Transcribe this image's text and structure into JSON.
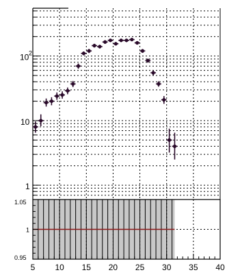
{
  "chart_data": [
    {
      "type": "scatter",
      "title": "",
      "xlabel": "",
      "ylabel": "",
      "scale": "log",
      "grid": true,
      "xlim": [
        5,
        40
      ],
      "ylim": [
        0.6,
        550
      ],
      "y_tick_labels": [
        {
          "value": 1,
          "label": "1"
        },
        {
          "value": 10,
          "label": "10"
        },
        {
          "value": 100,
          "label": "10",
          "exponent": "2"
        }
      ],
      "series": [
        {
          "color": "#2a0a2a",
          "x": [
            5.5,
            6.5,
            7.5,
            8.5,
            9.5,
            10.5,
            11.5,
            12.5,
            13.5,
            14.5,
            15.5,
            16.5,
            17.5,
            18.5,
            19.5,
            20.5,
            21.5,
            22.5,
            23.5,
            24.5,
            25.5,
            26.5,
            27.5,
            28.5,
            29.5,
            30.5,
            31.5
          ],
          "y": [
            8,
            10,
            19,
            20,
            24,
            25,
            29,
            37,
            70,
            110,
            120,
            145,
            140,
            165,
            175,
            155,
            175,
            175,
            180,
            160,
            120,
            85,
            55,
            37,
            21,
            5,
            4
          ],
          "yerr_low": [
            1.5,
            1.8,
            2.5,
            2.7,
            3.0,
            3.1,
            3.4,
            4.0,
            6.5,
            7.5,
            8.5,
            9.5,
            9.0,
            10.0,
            10.0,
            9.5,
            10.0,
            10.0,
            10.0,
            9.5,
            8.0,
            6.0,
            4.5,
            3.5,
            2.8,
            1.8,
            1.5
          ],
          "yerr_high": [
            1.7,
            2.5,
            3.0,
            3.0,
            3.3,
            3.4,
            3.6,
            4.2,
            6.7,
            7.8,
            8.8,
            9.8,
            9.3,
            10.3,
            10.3,
            9.8,
            10.3,
            10.3,
            10.3,
            9.8,
            8.3,
            6.3,
            4.7,
            3.7,
            3.0,
            2.5,
            2.5
          ]
        }
      ]
    },
    {
      "type": "scatter",
      "title": "",
      "xlabel": "",
      "ylabel": "",
      "grid": true,
      "xlim": [
        5,
        40
      ],
      "ylim": [
        0.95,
        1.05
      ],
      "y_tick_labels": [
        {
          "value": 0.95,
          "label": "0.95"
        },
        {
          "value": 1.0,
          "label": "1"
        },
        {
          "value": 1.05,
          "label": "1.05"
        }
      ],
      "x_tick_labels": [
        "5",
        "10",
        "15",
        "20",
        "25",
        "30",
        "35",
        "40"
      ],
      "x_ticks": [
        5,
        10,
        15,
        20,
        25,
        30,
        35,
        40
      ],
      "band": {
        "x_range": [
          5,
          31.5
        ],
        "y_range": [
          0.95,
          1.05
        ],
        "color": "#c8c8c8"
      },
      "reference_line": {
        "y": 1.0,
        "x_range": [
          5,
          31.5
        ],
        "color": "#8b1a1a"
      }
    }
  ]
}
